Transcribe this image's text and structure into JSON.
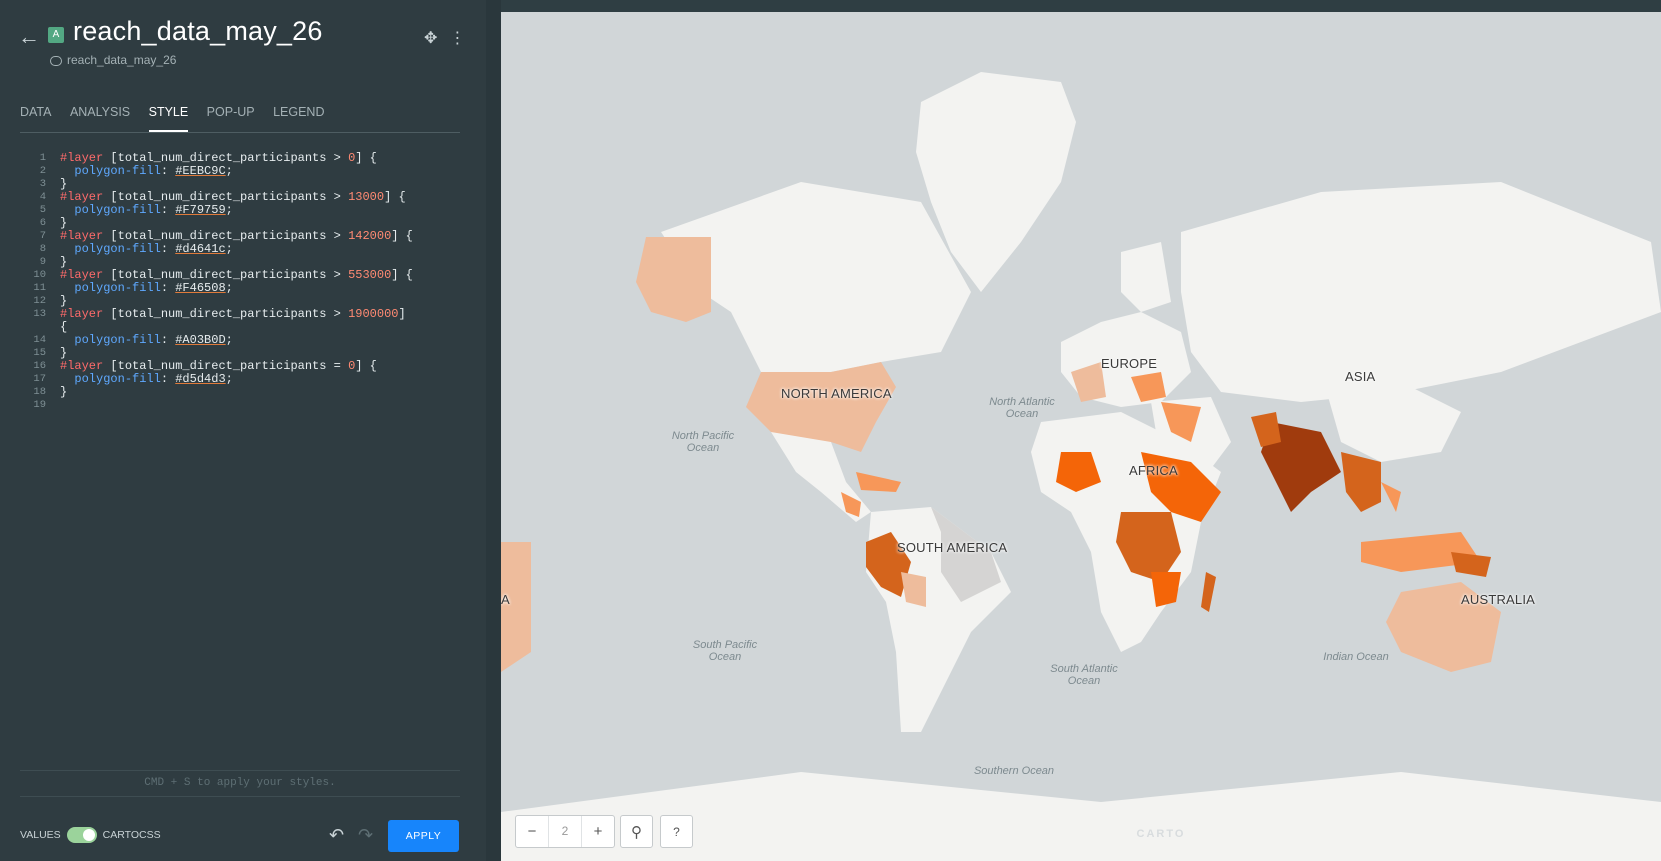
{
  "header": {
    "title": "reach_data_may_26",
    "subtitle": "reach_data_may_26",
    "badge": "A",
    "back_icon": "arrow-left-icon",
    "move_icon": "move-icon",
    "more_icon": "more-vertical-icon"
  },
  "tabs": [
    {
      "label": "DATA"
    },
    {
      "label": "ANALYSIS"
    },
    {
      "label": "STYLE",
      "active": true
    },
    {
      "label": "POP-UP"
    },
    {
      "label": "LEGEND"
    }
  ],
  "code_lines": [
    {
      "n": "1",
      "sel": "#layer",
      "plain1": " [total_num_direct_participants > ",
      "val": "0",
      "plain2": "] {"
    },
    {
      "n": "2",
      "prop": "polygon-fill",
      "hex": "#EEBC9C"
    },
    {
      "n": "3",
      "close": "}"
    },
    {
      "n": "4",
      "sel": "#layer",
      "plain1": " [total_num_direct_participants > ",
      "val": "13000",
      "plain2": "] {"
    },
    {
      "n": "5",
      "prop": "polygon-fill",
      "hex": "#F79759"
    },
    {
      "n": "6",
      "close": "}"
    },
    {
      "n": "7",
      "sel": "#layer",
      "plain1": " [total_num_direct_participants > ",
      "val": "142000",
      "plain2": "] {"
    },
    {
      "n": "8",
      "prop": "polygon-fill",
      "hex": "#d4641c"
    },
    {
      "n": "9",
      "close": "}"
    },
    {
      "n": "10",
      "sel": "#layer",
      "plain1": " [total_num_direct_participants > ",
      "val": "553000",
      "plain2": "] {"
    },
    {
      "n": "11",
      "prop": "polygon-fill",
      "hex": "#F46508"
    },
    {
      "n": "12",
      "close": "}"
    },
    {
      "n": "13",
      "sel": "#layer",
      "plain1": " [total_num_direct_participants > ",
      "val": "1900000",
      "plain2": "]"
    },
    {
      "n": "",
      "close": "{"
    },
    {
      "n": "14",
      "prop": "polygon-fill",
      "hex": "#A03B0D"
    },
    {
      "n": "15",
      "close": "}"
    },
    {
      "n": "16",
      "sel": "#layer",
      "plain1": " [total_num_direct_participants = ",
      "val": "0",
      "plain2": "] {"
    },
    {
      "n": "17",
      "prop": "polygon-fill",
      "hex": "#d5d4d3"
    },
    {
      "n": "18",
      "close": "}"
    },
    {
      "n": "19",
      "close": ""
    }
  ],
  "hint": "CMD + S to apply your styles.",
  "footer": {
    "values_label": "VALUES",
    "cartocss_label": "CARTOCSS",
    "apply_label": "APPLY",
    "undo_icon": "undo-icon",
    "redo_icon": "redo-icon"
  },
  "map": {
    "zoom": "2",
    "zoom_out": "−",
    "zoom_in": "+",
    "help": "?",
    "continent_labels": [
      "NORTH AMERICA",
      "EUROPE",
      "ASIA",
      "AFRICA",
      "SOUTH AMERICA",
      "AUSTRALIA",
      "A"
    ],
    "ocean_labels": [
      "North Atlantic Ocean",
      "North Pacific Ocean",
      "South Pacific Ocean",
      "South Atlantic Ocean",
      "Indian Ocean",
      "Southern Ocean"
    ],
    "watermark": "CARTO",
    "colors": {
      "ocean": "#d1d6d8",
      "land": "#f3f3f1",
      "nodata": "#d5d4d3",
      "c1": "#EEBC9C",
      "c2": "#F79759",
      "c3": "#d4641c",
      "c4": "#F46508",
      "c5": "#A03B0D"
    }
  }
}
